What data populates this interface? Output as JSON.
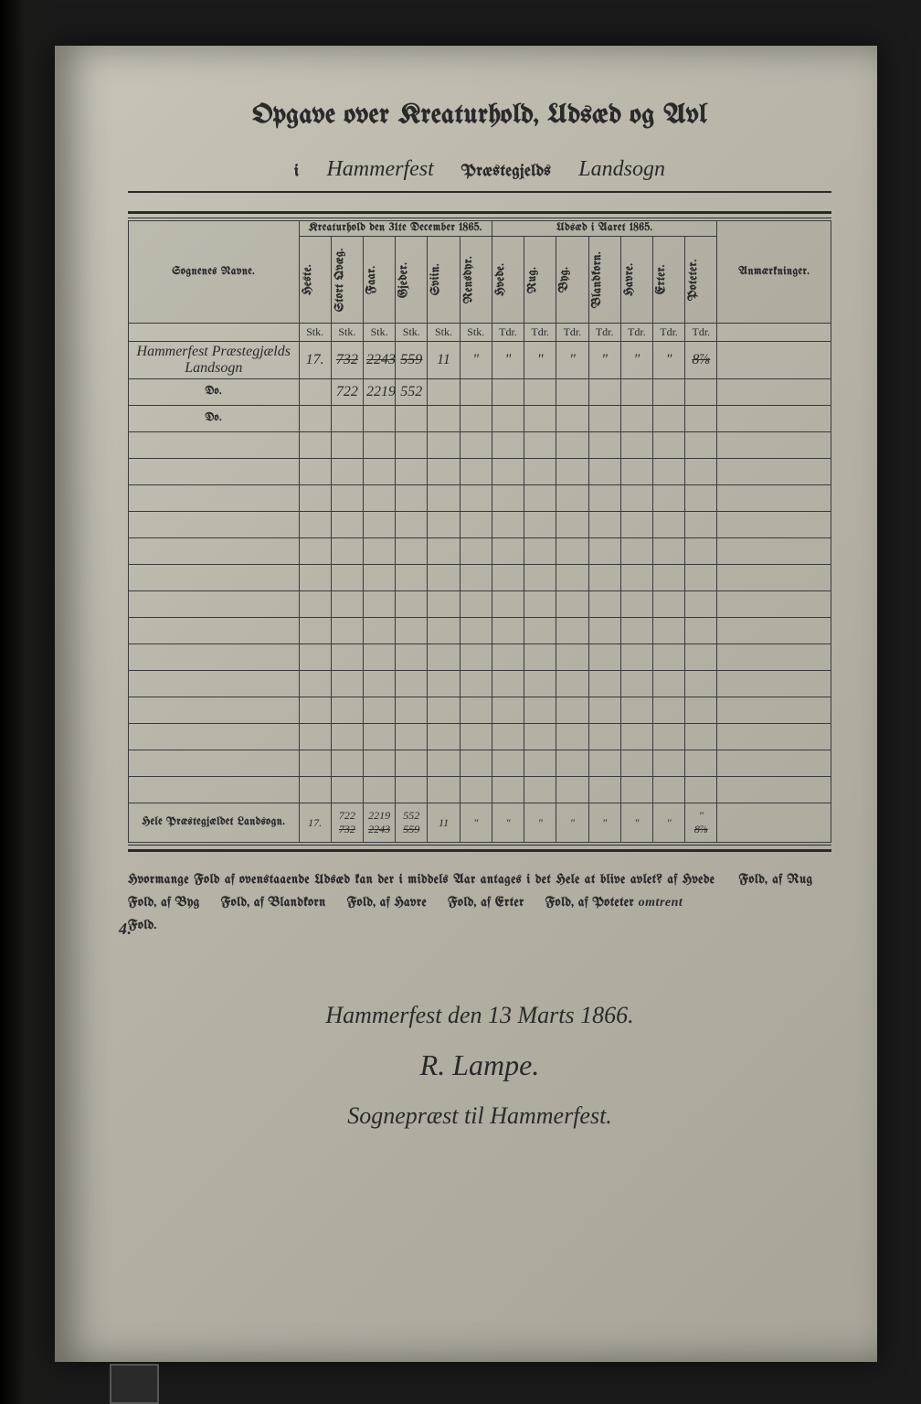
{
  "title": "Opgave over Kreaturhold, Udsæd og Avl",
  "header": {
    "i": "i",
    "place": "Hammerfest",
    "praestegjelds": "Præstegjelds",
    "landsogn": "Landsogn"
  },
  "columns": {
    "sognenes": "Sognenes Navne.",
    "group1": "Kreaturhold den 31te December 1865.",
    "group2": "Udsæd i Aaret 1865.",
    "remarks": "Anmærkninger.",
    "heste": "Heste.",
    "stort": "Stort Qvæg.",
    "faar": "Faar.",
    "gjeder": "Gjeder.",
    "sviin": "Sviin.",
    "rensdyr": "Rensdyr.",
    "hvede": "Hvede.",
    "rug": "Rug.",
    "byg": "Byg.",
    "blandkorn": "Blandkorn.",
    "havre": "Havre.",
    "erter": "Erter.",
    "poteter": "Poteter."
  },
  "units": {
    "stk": "Stk.",
    "tdr": "Tdr."
  },
  "rows": {
    "r1_name": "Hammerfest Præstegjælds Landsogn",
    "r1": {
      "heste": "17.",
      "stort": "732",
      "faar": "2243",
      "gjeder": "559",
      "sviin": "11",
      "rensdyr": "\"",
      "hvede": "\"",
      "rug": "\"",
      "byg": "\"",
      "blandkorn": "\"",
      "havre": "\"",
      "erter": "\"",
      "poteter": "8⅞"
    },
    "r2_name": "Do.",
    "r2": {
      "stort": "722",
      "faar": "2219",
      "gjeder": "552"
    },
    "r3_name": "Do."
  },
  "total": {
    "label": "Hele Præstegjældet Landsogn.",
    "heste": "17.",
    "stort_top": "722",
    "stort_bot": "732",
    "faar_top": "2219",
    "faar_bot": "2243",
    "gjeder_top": "552",
    "gjeder_bot": "559",
    "sviin": "11",
    "rensdyr": "\"",
    "hvede": "\"",
    "rug": "\"",
    "byg": "\"",
    "blandkorn": "\"",
    "havre": "\"",
    "erter": "\"",
    "poteter_top": "\"",
    "poteter_bot": "8⅞"
  },
  "bottom": {
    "line1": "Hvormange Fold af ovenstaaende Udsæd kan der i middels Aar antages i det Hele at blive avlet? af Hvede",
    "fold": "Fold, af",
    "rug": "Rug",
    "byg": "Byg",
    "blandkorn": "Blandkorn",
    "havre": "Havre",
    "erter": "Erter",
    "poteter": "Poteter",
    "omtrent": "omtrent",
    "four": "4.",
    "fold_end": "Fold."
  },
  "sig": {
    "place_date": "Hammerfest den 13 Marts 1866.",
    "name": "R. Lampe.",
    "title": "Sognepræst til Hammerfest."
  }
}
